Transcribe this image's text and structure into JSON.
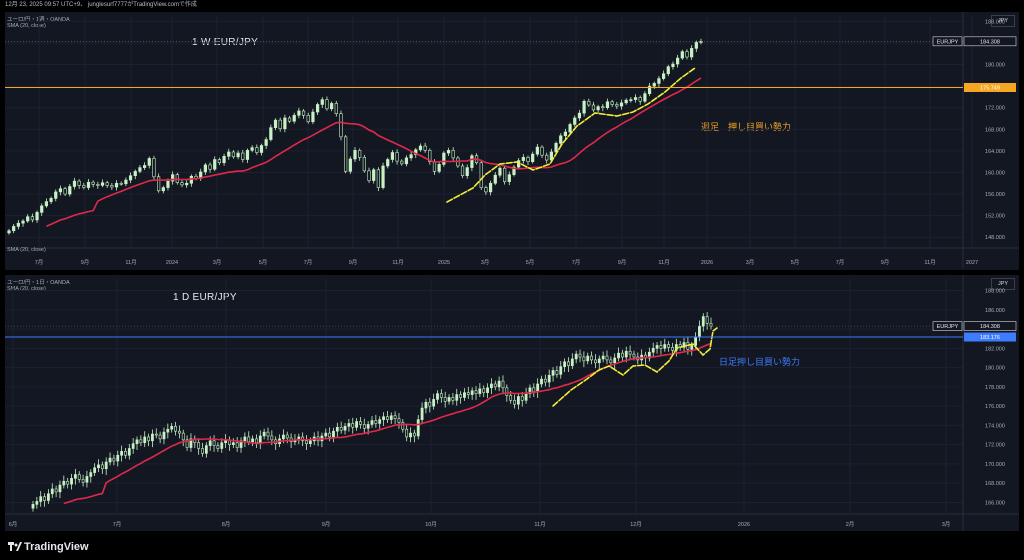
{
  "header": {
    "caption": "12月 23, 2025 09:57 UTC+9、 junglesurf7777がTradingView.comで作成"
  },
  "footer": {
    "brand": "TradingView"
  },
  "colors": {
    "bg": "#131722",
    "bull": "#c8f2c5",
    "bear": "#131722",
    "sma": "#e0294a",
    "yellow": "#f2ec3a",
    "orange": "#f5a623",
    "blue": "#3d7bff",
    "label_fill": "#e6e8ee",
    "grid": "#1c2030"
  },
  "chart_data": [
    {
      "type": "candlestick",
      "title": "1 W EUR/JPY",
      "header_line1": "ユーロ/円・1週・OANDA",
      "header_line2": "SMA (20, close)",
      "indicator_label": "SMA (20, close)",
      "currency_button": "JPY",
      "symbol_label": "EURJPY",
      "last_price_label": "184.308",
      "last_price": 184.308,
      "level_label": "175.749",
      "level": 175.749,
      "level_color": "#f5a623",
      "annotation": "週足　押し目買い勢力",
      "annotation_color": "#f5a623",
      "yticks": [
        "148.000",
        "152.000",
        "156.000",
        "160.000",
        "164.000",
        "168.000",
        "172.000",
        "176.000",
        "180.000",
        "184.000",
        "188.000"
      ],
      "ylim": [
        146,
        189
      ],
      "xtick_labels": [
        "7月",
        "9月",
        "11月",
        "2024",
        "3月",
        "5月",
        "7月",
        "9月",
        "11月",
        "2025",
        "3月",
        "5月",
        "7月",
        "9月",
        "11月",
        "2026",
        "3月",
        "5月",
        "7月",
        "9月",
        "11月",
        "2027"
      ],
      "sma_period": 20,
      "series_close": [
        149.2,
        150.0,
        150.6,
        151.0,
        151.8,
        151.2,
        152.6,
        153.8,
        154.6,
        155.2,
        156.4,
        157.0,
        156.0,
        157.4,
        158.4,
        157.6,
        157.2,
        158.2,
        157.8,
        157.6,
        158.1,
        157.6,
        157.3,
        158.0,
        157.9,
        158.6,
        159.4,
        160.2,
        160.9,
        161.3,
        162.6,
        159.2,
        156.6,
        157.2,
        158.4,
        159.6,
        158.1,
        157.7,
        158.0,
        159.3,
        158.9,
        160.1,
        161.4,
        160.6,
        162.4,
        161.8,
        163.0,
        163.8,
        162.9,
        163.6,
        162.4,
        164.1,
        164.6,
        163.7,
        165.0,
        166.1,
        168.3,
        169.7,
        168.1,
        170.1,
        169.5,
        170.6,
        171.4,
        170.6,
        169.4,
        171.2,
        172.6,
        173.5,
        171.8,
        172.8,
        170.9,
        166.6,
        160.2,
        162.5,
        164.1,
        162.8,
        160.3,
        158.5,
        160.5,
        157.2,
        161.2,
        162.4,
        163.7,
        162.1,
        161.6,
        162.7,
        163.3,
        164.2,
        164.9,
        164.1,
        162.0,
        160.2,
        161.5,
        163.6,
        164.1,
        162.7,
        161.2,
        159.4,
        160.9,
        163.1,
        161.8,
        157.2,
        156.4,
        158.0,
        159.5,
        160.8,
        158.3,
        159.6,
        161.0,
        162.2,
        162.8,
        162.0,
        163.4,
        164.7,
        163.2,
        162.3,
        163.8,
        165.4,
        166.8,
        167.5,
        168.9,
        170.1,
        171.0,
        173.2,
        172.5,
        171.6,
        172.2,
        172.0,
        173.1,
        172.6,
        172.3,
        172.9,
        173.4,
        173.5,
        173.9,
        173.2,
        174.6,
        176.0,
        176.5,
        177.4,
        178.3,
        179.6,
        180.1,
        181.2,
        182.4,
        181.4,
        183.0,
        184.1,
        184.308
      ]
    },
    {
      "type": "candlestick",
      "title": "1 D EUR/JPY",
      "header_line1": "ユーロ/円・1日・OANDA",
      "header_line2": "SMA (20, close)",
      "currency_button": "JPY",
      "symbol_label": "EURJPY",
      "last_price_label": "184.308",
      "last_price": 184.308,
      "level_label": "183.176",
      "level": 183.176,
      "level_color": "#3d7bff",
      "annotation": "日足押し目買い勢力",
      "annotation_color": "#3d7bff",
      "yticks": [
        "166.000",
        "168.000",
        "170.000",
        "172.000",
        "174.000",
        "176.000",
        "178.000",
        "180.000",
        "182.000",
        "184.000",
        "186.000",
        "188.000"
      ],
      "ylim": [
        164.8,
        189.2
      ],
      "xtick_labels": [
        "6月",
        "7月",
        "8月",
        "9月",
        "10月",
        "11月",
        "12月",
        "2026",
        "2月",
        "3月"
      ],
      "sma_period": 20,
      "series_close": [
        165.8,
        166.1,
        166.6,
        166.2,
        166.9,
        167.4,
        167.1,
        167.8,
        168.2,
        167.9,
        168.5,
        168.9,
        168.4,
        168.1,
        168.7,
        169.1,
        169.6,
        169.9,
        169.5,
        170.2,
        170.6,
        170.3,
        170.9,
        171.3,
        170.9,
        171.6,
        172.1,
        172.5,
        172.2,
        172.8,
        172.4,
        173.1,
        173.0,
        172.6,
        173.3,
        173.6,
        173.9,
        173.4,
        173.2,
        172.5,
        171.7,
        172.6,
        172.2,
        171.6,
        171.1,
        171.9,
        172.4,
        171.9,
        171.6,
        172.2,
        172.5,
        172.0,
        172.2,
        171.7,
        172.4,
        172.8,
        172.3,
        172.6,
        172.2,
        172.9,
        173.3,
        172.9,
        172.5,
        172.1,
        172.6,
        173.0,
        172.7,
        172.3,
        172.5,
        172.8,
        172.4,
        172.1,
        172.4,
        172.8,
        172.4,
        172.9,
        173.2,
        172.8,
        173.4,
        173.8,
        173.5,
        173.9,
        174.2,
        173.8,
        174.4,
        174.1,
        173.7,
        174.1,
        174.5,
        174.2,
        174.6,
        174.9,
        174.6,
        175.0,
        174.7,
        174.3,
        173.6,
        172.8,
        173.2,
        172.9,
        174.6,
        175.8,
        176.4,
        176.0,
        176.7,
        177.3,
        176.9,
        176.5,
        176.9,
        176.6,
        177.2,
        176.9,
        177.4,
        177.2,
        177.6,
        177.3,
        177.8,
        177.4,
        177.9,
        178.3,
        178.0,
        178.6,
        177.9,
        177.1,
        176.6,
        176.2,
        177.0,
        176.6,
        177.3,
        177.9,
        177.5,
        178.3,
        178.8,
        178.5,
        179.2,
        179.7,
        179.3,
        180.1,
        180.6,
        180.2,
        180.9,
        181.4,
        181.1,
        180.7,
        181.2,
        180.8,
        180.5,
        180.9,
        181.2,
        180.8,
        180.5,
        181.0,
        181.5,
        181.1,
        181.7,
        181.4,
        181.1,
        180.8,
        181.3,
        181.0,
        181.6,
        182.0,
        182.3,
        182.0,
        182.4,
        182.1,
        181.8,
        182.4,
        182.1,
        182.6,
        181.9,
        182.3,
        183.2,
        184.3,
        185.3,
        184.6,
        184.308
      ]
    }
  ]
}
